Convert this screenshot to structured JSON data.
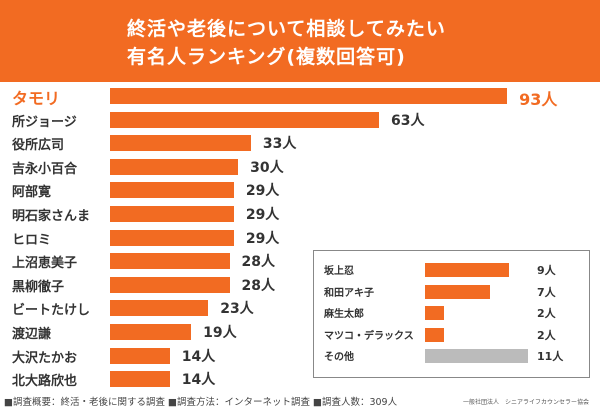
{
  "chart_data": [
    {
      "type": "bar",
      "orientation": "horizontal",
      "title": "終活や老後について相談してみたい有名人ランキング(複数回答可)",
      "title_lines": [
        "終活や老後について相談してみたい",
        "有名人ランキング(複数回答可)"
      ],
      "categories": [
        "タモリ",
        "所ジョージ",
        "役所広司",
        "吉永小百合",
        "阿部寛",
        "明石家さんま",
        "ヒロミ",
        "上沼恵美子",
        "黒柳徹子",
        "ビートたけし",
        "渡辺謙",
        "大沢たかお",
        "北大路欣也"
      ],
      "values": [
        93,
        63,
        33,
        30,
        29,
        29,
        29,
        28,
        28,
        23,
        19,
        14,
        14
      ],
      "unit": "人",
      "highlight_color": "#f26b22",
      "bar_color": "#f26b22"
    },
    {
      "type": "bar",
      "orientation": "horizontal",
      "legend": "inset",
      "categories": [
        "坂上忍",
        "和田アキ子",
        "麻生太郎",
        "マツコ・デラックス",
        "その他"
      ],
      "values": [
        9,
        7,
        2,
        2,
        11
      ],
      "unit": "人",
      "colors": [
        "#f26b22",
        "#f26b22",
        "#f26b22",
        "#f26b22",
        "#bbbbbb"
      ]
    }
  ],
  "footer": "■調査概要：終活・老後に関する調査 ■調査方法：インターネット調査 ■調査人数：309人",
  "organization": "一般社団法人　シニアライフカウンセラー協会"
}
